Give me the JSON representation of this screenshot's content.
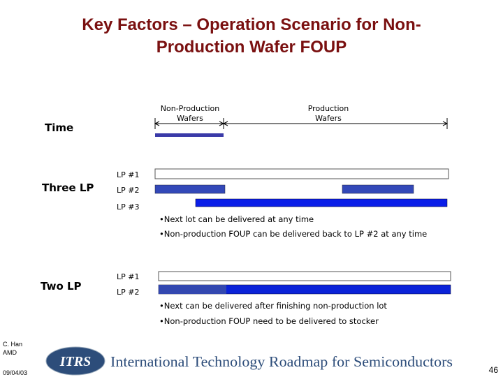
{
  "header": {
    "title_line1": "Key Factors – Operation Scenario for Non-",
    "title_line2": "Production Wafer FOUP"
  },
  "timeline": {
    "label": "Time",
    "phase1_line1": "Non-Production",
    "phase1_line2": "Wafers",
    "phase2_line1": "Production",
    "phase2_line2": "Wafers"
  },
  "three_lp": {
    "label": "Three LP",
    "ports": [
      "LP #1",
      "LP #2",
      "LP #3"
    ],
    "notes": [
      "•Next lot can be delivered at any time",
      "•Non-production FOUP can be delivered back to LP #2 at any time"
    ]
  },
  "two_lp": {
    "label": "Two LP",
    "ports": [
      "LP #1",
      "LP #2"
    ],
    "notes": [
      "•Next can be delivered after finishing non-production lot",
      "•Non-production FOUP need to be delivered to stocker"
    ]
  },
  "footer": {
    "author": "C. Han",
    "company": "AMD",
    "date": "09/04/03",
    "logo_mark": "ITRS",
    "logo_text": "International Technology Roadmap for Semiconductors",
    "page": "46"
  }
}
